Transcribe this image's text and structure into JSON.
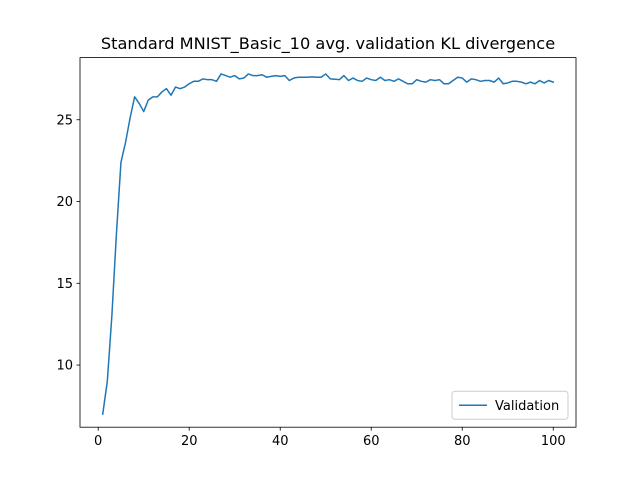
{
  "chart_data": {
    "type": "line",
    "title": "Standard MNIST_Basic_10 avg. validation KL divergence",
    "xlabel": "",
    "ylabel": "",
    "xlim": [
      -4,
      105
    ],
    "ylim": [
      6.2,
      28.8
    ],
    "xticks": [
      0,
      20,
      40,
      60,
      80,
      100
    ],
    "yticks": [
      10,
      15,
      20,
      25
    ],
    "xtick_labels": [
      "0",
      "20",
      "40",
      "60",
      "80",
      "100"
    ],
    "ytick_labels": [
      "10",
      "15",
      "20",
      "25"
    ],
    "grid": false,
    "legend": {
      "location": "lower right",
      "entries": [
        "Validation"
      ]
    },
    "series": [
      {
        "name": "Validation",
        "color": "#1f77b4",
        "x": [
          1,
          2,
          3,
          4,
          5,
          6,
          7,
          8,
          9,
          10,
          11,
          12,
          13,
          14,
          15,
          16,
          17,
          18,
          19,
          20,
          21,
          22,
          23,
          24,
          25,
          26,
          27,
          28,
          29,
          30,
          31,
          32,
          33,
          34,
          35,
          36,
          37,
          38,
          39,
          40,
          41,
          42,
          43,
          44,
          45,
          46,
          47,
          48,
          49,
          50,
          51,
          52,
          53,
          54,
          55,
          56,
          57,
          58,
          59,
          60,
          61,
          62,
          63,
          64,
          65,
          66,
          67,
          68,
          69,
          70,
          71,
          72,
          73,
          74,
          75,
          76,
          77,
          78,
          79,
          80,
          81,
          82,
          83,
          84,
          85,
          86,
          87,
          88,
          89,
          90,
          91,
          92,
          93,
          94,
          95,
          96,
          97,
          98,
          99,
          100
        ],
        "values": [
          7.0,
          9.0,
          13.0,
          18.0,
          22.4,
          23.6,
          25.1,
          26.4,
          26.0,
          25.5,
          26.2,
          26.4,
          26.4,
          26.7,
          26.9,
          26.5,
          27.0,
          26.9,
          27.0,
          27.2,
          27.35,
          27.35,
          27.5,
          27.45,
          27.45,
          27.35,
          27.8,
          27.7,
          27.6,
          27.7,
          27.5,
          27.55,
          27.8,
          27.7,
          27.7,
          27.75,
          27.6,
          27.65,
          27.7,
          27.65,
          27.7,
          27.4,
          27.55,
          27.6,
          27.6,
          27.6,
          27.62,
          27.6,
          27.6,
          27.8,
          27.5,
          27.48,
          27.45,
          27.7,
          27.4,
          27.55,
          27.4,
          27.35,
          27.55,
          27.45,
          27.4,
          27.6,
          27.4,
          27.45,
          27.35,
          27.5,
          27.35,
          27.2,
          27.2,
          27.45,
          27.35,
          27.3,
          27.45,
          27.4,
          27.45,
          27.2,
          27.2,
          27.4,
          27.6,
          27.55,
          27.3,
          27.5,
          27.45,
          27.35,
          27.4,
          27.4,
          27.3,
          27.55,
          27.2,
          27.25,
          27.35,
          27.35,
          27.3,
          27.2,
          27.3,
          27.2,
          27.4,
          27.25,
          27.4,
          27.3
        ]
      }
    ]
  }
}
